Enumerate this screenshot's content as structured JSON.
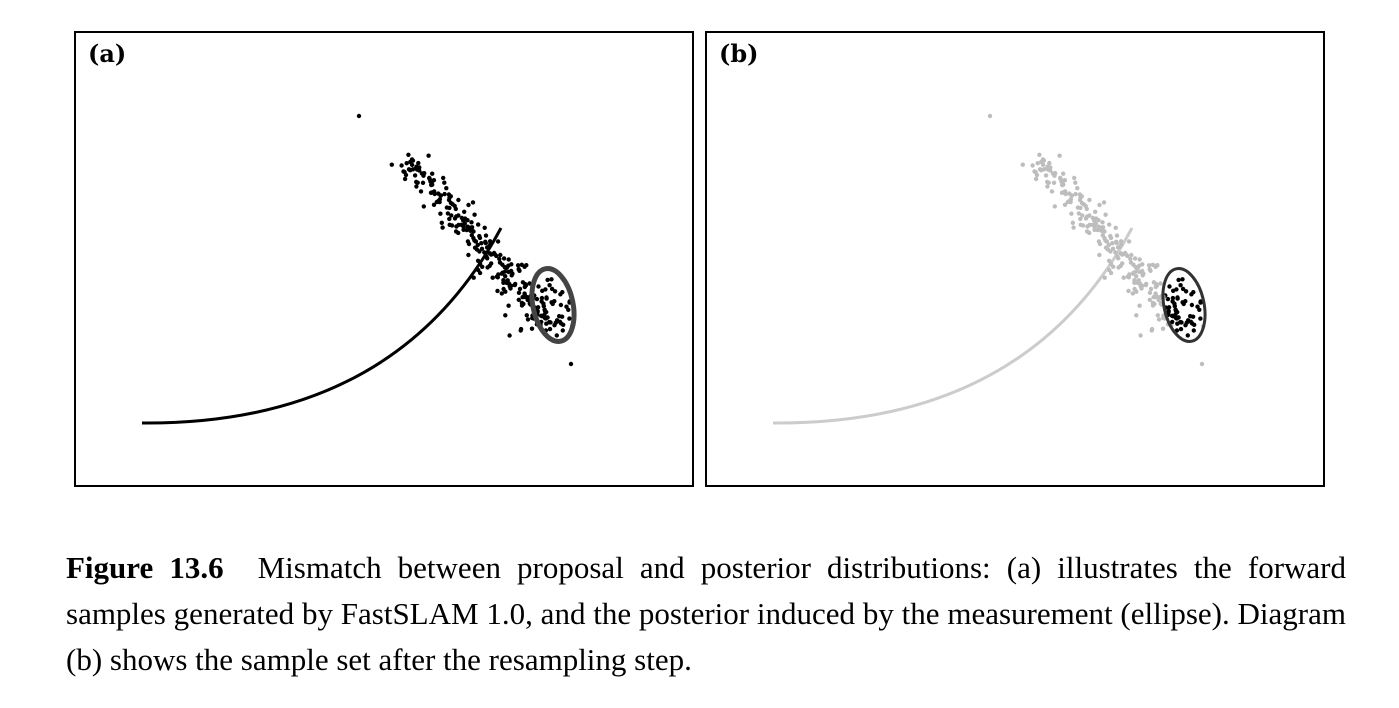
{
  "figure": {
    "panels": [
      {
        "id": "a",
        "label": "(a)",
        "style": "proposal",
        "point_color": "#000000",
        "curve_color": "#000000",
        "ellipse_color": "#444444"
      },
      {
        "id": "b",
        "label": "(b)",
        "style": "resampled",
        "point_color": "#bdbdbd",
        "highlight_color": "#000000",
        "curve_color": "#cccccc",
        "ellipse_color": "#333333"
      }
    ],
    "caption": {
      "label": "Figure 13.6",
      "text": "Mismatch between proposal and posterior distributions: (a) illustrates the forward samples generated by FastSLAM 1.0, and the posterior induced by the measurement (ellipse). Diagram (b) shows the sample set after the resampling step."
    }
  }
}
